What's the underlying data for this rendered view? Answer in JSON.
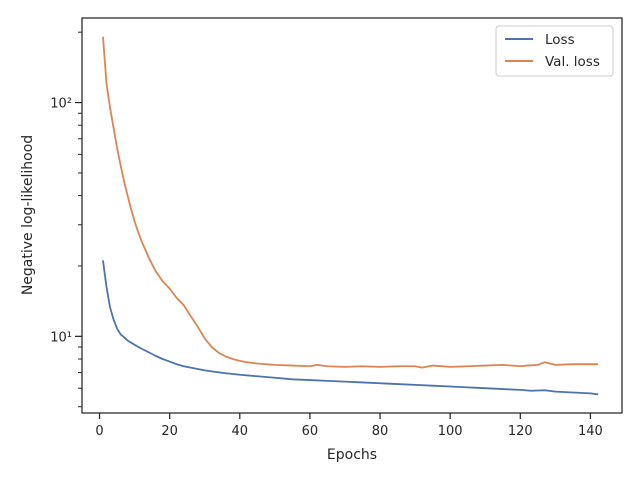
{
  "chart_data": {
    "type": "line",
    "title": "",
    "xlabel": "Epochs",
    "ylabel": "Negative log-likelihood",
    "xlim": [
      -5,
      149
    ],
    "ylim": [
      4.7,
      230
    ],
    "yscale": "log",
    "grid": false,
    "legend_position": "top-right",
    "x_ticks": [
      0,
      20,
      40,
      60,
      80,
      100,
      120,
      140
    ],
    "x_tick_labels": [
      "0",
      "20",
      "40",
      "60",
      "80",
      "100",
      "120",
      "140"
    ],
    "y_major_ticks": [
      10,
      100
    ],
    "y_major_tick_labels": [
      "10¹",
      "10²"
    ],
    "y_minor_ticks": [
      5,
      6,
      7,
      8,
      9,
      20,
      30,
      40,
      50,
      60,
      70,
      80,
      90,
      200
    ],
    "series": [
      {
        "name": "Loss",
        "color": "#4c72b0",
        "x": [
          1,
          2,
          3,
          4,
          5,
          6,
          7,
          8,
          10,
          12,
          14,
          16,
          18,
          20,
          22,
          24,
          26,
          28,
          30,
          33,
          36,
          40,
          45,
          50,
          55,
          60,
          65,
          70,
          75,
          80,
          85,
          90,
          95,
          100,
          105,
          110,
          115,
          120,
          123,
          127,
          130,
          135,
          140,
          142
        ],
        "y": [
          21,
          16.2,
          13.3,
          11.8,
          10.8,
          10.2,
          9.9,
          9.6,
          9.2,
          8.85,
          8.55,
          8.25,
          8.0,
          7.8,
          7.6,
          7.45,
          7.35,
          7.25,
          7.15,
          7.05,
          6.95,
          6.85,
          6.75,
          6.65,
          6.55,
          6.5,
          6.45,
          6.4,
          6.35,
          6.3,
          6.25,
          6.2,
          6.15,
          6.1,
          6.05,
          6.0,
          5.95,
          5.9,
          5.85,
          5.88,
          5.8,
          5.75,
          5.7,
          5.65
        ]
      },
      {
        "name": "Val. loss",
        "color": "#dd8452",
        "x": [
          1,
          2,
          3,
          4,
          5,
          6,
          7,
          8,
          9,
          10,
          11,
          12,
          14,
          16,
          18,
          20,
          22,
          24,
          26,
          28,
          30,
          32,
          34,
          36,
          38,
          40,
          42,
          45,
          50,
          55,
          60,
          62,
          65,
          70,
          75,
          80,
          85,
          90,
          92,
          95,
          100,
          105,
          110,
          115,
          120,
          122,
          125,
          127,
          130,
          135,
          140,
          142
        ],
        "y": [
          190,
          120,
          95,
          78,
          64,
          54,
          46,
          40,
          35,
          31,
          28,
          25.5,
          21.8,
          19,
          17.2,
          16,
          14.6,
          13.6,
          12.2,
          11,
          9.8,
          9.0,
          8.5,
          8.2,
          8.0,
          7.85,
          7.75,
          7.65,
          7.55,
          7.5,
          7.45,
          7.55,
          7.45,
          7.4,
          7.45,
          7.4,
          7.45,
          7.45,
          7.35,
          7.5,
          7.4,
          7.45,
          7.5,
          7.55,
          7.45,
          7.5,
          7.55,
          7.75,
          7.55,
          7.6,
          7.6,
          7.6
        ]
      }
    ]
  }
}
